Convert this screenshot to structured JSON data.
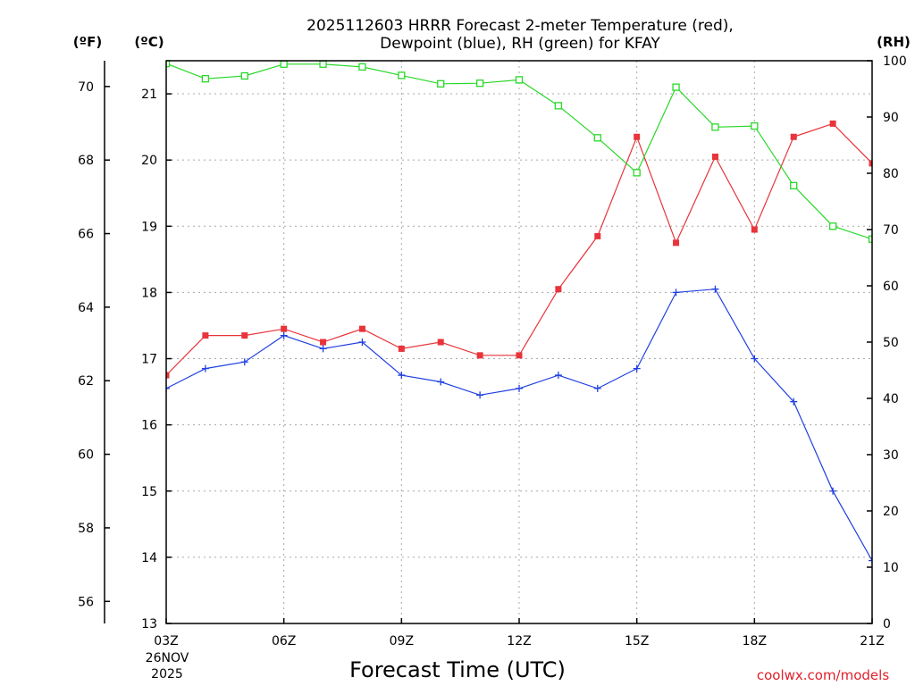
{
  "chart_data": {
    "type": "line",
    "title_line1": "2025112603 HRRR Forecast 2-meter Temperature (red),",
    "title_line2": "Dewpoint (blue), RH (green) for KFAY",
    "xlabel": "Forecast Time (UTC)",
    "x_start_date_line1": "26NOV",
    "x_start_date_line2": "2025",
    "credit": "coolwx.com/models",
    "units": {
      "fahrenheit": "(ºF)",
      "celsius": "(ºC)",
      "rh": "(RH)"
    },
    "x": [
      3,
      4,
      5,
      6,
      7,
      8,
      9,
      10,
      11,
      12,
      13,
      14,
      15,
      16,
      17,
      18,
      19,
      20,
      21
    ],
    "xlim": [
      3,
      21
    ],
    "x_tick_labels": [
      {
        "x": 3,
        "label": "03Z"
      },
      {
        "x": 6,
        "label": "06Z"
      },
      {
        "x": 9,
        "label": "09Z"
      },
      {
        "x": 12,
        "label": "12Z"
      },
      {
        "x": 15,
        "label": "15Z"
      },
      {
        "x": 18,
        "label": "18Z"
      },
      {
        "x": 21,
        "label": "21Z"
      }
    ],
    "celsius_axis": {
      "range": [
        13.0,
        21.5
      ],
      "ticks": [
        13,
        14,
        15,
        16,
        17,
        18,
        19,
        20,
        21
      ]
    },
    "fahrenheit_axis": {
      "ticks": [
        56,
        58,
        60,
        62,
        64,
        66,
        68,
        70
      ]
    },
    "rh_axis": {
      "range": [
        0,
        100
      ],
      "ticks": [
        0,
        10,
        20,
        30,
        40,
        50,
        60,
        70,
        80,
        90,
        100
      ]
    },
    "grid": true,
    "series": [
      {
        "description": "Temperature",
        "axis": "celsius",
        "color": "#e8343a",
        "marker": "filled-square",
        "values": [
          16.75,
          17.35,
          17.35,
          17.45,
          17.25,
          17.45,
          17.15,
          17.25,
          17.05,
          17.05,
          18.05,
          18.85,
          20.35,
          18.75,
          20.05,
          18.95,
          20.35,
          20.55,
          19.95
        ]
      },
      {
        "description": "Dewpoint",
        "axis": "celsius",
        "color": "#2040e0",
        "marker": "plus",
        "values": [
          16.55,
          16.85,
          16.95,
          17.35,
          17.15,
          17.25,
          16.75,
          16.65,
          16.45,
          16.55,
          16.75,
          16.55,
          16.85,
          18.0,
          18.05,
          17.0,
          16.35,
          15.0,
          13.95
        ]
      },
      {
        "description": "RH",
        "axis": "rh",
        "color": "#28d828",
        "marker": "open-square",
        "values": [
          99.5,
          96.8,
          97.3,
          99.4,
          99.4,
          98.9,
          97.4,
          95.9,
          96.0,
          96.6,
          92.0,
          86.3,
          80.1,
          95.3,
          88.2,
          88.4,
          77.8,
          70.6,
          68.3
        ]
      }
    ]
  }
}
